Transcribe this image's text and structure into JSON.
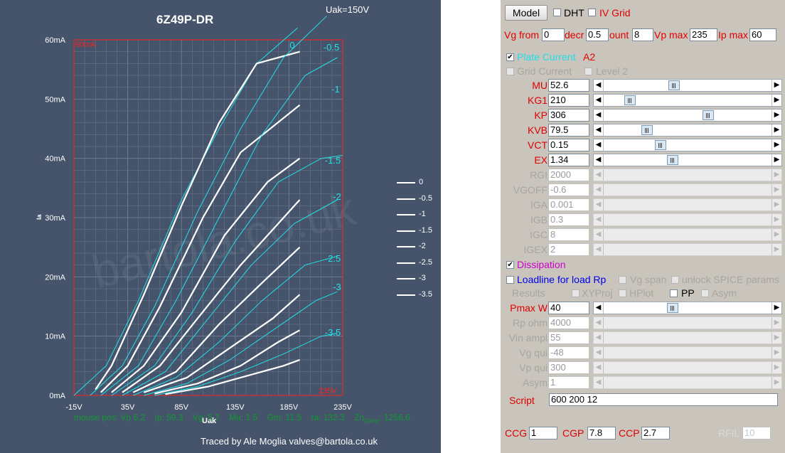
{
  "plot": {
    "title": "6Z49P-DR",
    "condition": "Uak=150V",
    "corner_tl": "60mA",
    "corner_br": "235V",
    "x_axis_label": "Uak",
    "y_axis_label": "Ia",
    "x_ticks": [
      "-15V",
      "35V",
      "85V",
      "135V",
      "185V",
      "235V"
    ],
    "y_ticks": [
      "0mA",
      "10mA",
      "20mA",
      "30mA",
      "40mA",
      "50mA",
      "60mA"
    ],
    "curve_labels": [
      "0",
      "-0.5",
      "-1",
      "-1.5",
      "-2",
      "-2.5",
      "-3",
      "-3.5"
    ],
    "legend": [
      "0",
      "-0.5",
      "-1",
      "-1.5",
      "-2",
      "-2.5",
      "-3",
      "-3.5"
    ],
    "status": {
      "mouse_pos": "mouse pos: Vp 6.2",
      "ip": "Ip: 59.3",
      "vg": "Vg: 5.7",
      "mu": "Mu: 1.5",
      "gm": "Gm: 11.5",
      "ra": "ra: 132.3",
      "zn_pre": "Zn",
      "zn_sub": "10khz",
      "zn_val": ": 1256.6"
    },
    "credit": "Traced by Ale Moglia valves@bartola.co.uk",
    "watermark": "bartola.co.uk",
    "colors": {
      "background": "#45546b",
      "measured": "#ffffff",
      "model": "#22e0e8",
      "frame": "#ff2020"
    }
  },
  "chart_data": {
    "type": "line",
    "title": "6Z49P-DR",
    "subtitle": "Uak=150V",
    "xlabel": "Uak",
    "ylabel": "Ia",
    "xlim": [
      -15,
      235
    ],
    "ylim": [
      0,
      60
    ],
    "grid": true,
    "legend_position": "right",
    "series": [
      {
        "name": "0",
        "model": [
          [
            -15,
            0
          ],
          [
            15,
            5
          ],
          [
            45,
            16
          ],
          [
            85,
            33
          ],
          [
            120,
            45
          ],
          [
            155,
            56
          ],
          [
            193,
            62
          ]
        ],
        "measured": [
          [
            5,
            1
          ],
          [
            20,
            5
          ],
          [
            50,
            17
          ],
          [
            85,
            32
          ],
          [
            120,
            46
          ],
          [
            155,
            56
          ],
          [
            195,
            58
          ]
        ]
      },
      {
        "name": "-0.5",
        "model": [
          [
            0,
            0
          ],
          [
            30,
            5
          ],
          [
            60,
            15
          ],
          [
            100,
            31
          ],
          [
            140,
            45
          ],
          [
            180,
            57
          ],
          [
            220,
            64
          ]
        ],
        "measured": [
          [
            10,
            0.5
          ],
          [
            35,
            5
          ],
          [
            65,
            15
          ],
          [
            105,
            30
          ],
          [
            140,
            41
          ],
          [
            195,
            49
          ]
        ]
      },
      {
        "name": "-1",
        "model": [
          [
            10,
            0
          ],
          [
            45,
            5
          ],
          [
            80,
            16
          ],
          [
            120,
            30
          ],
          [
            160,
            44
          ],
          [
            200,
            54
          ],
          [
            230,
            57
          ]
        ],
        "measured": [
          [
            20,
            0.5
          ],
          [
            50,
            5
          ],
          [
            85,
            14
          ],
          [
            125,
            27
          ],
          [
            165,
            36
          ],
          [
            195,
            40
          ]
        ]
      },
      {
        "name": "-1.5",
        "model": [
          [
            20,
            0
          ],
          [
            60,
            5
          ],
          [
            95,
            14
          ],
          [
            135,
            26
          ],
          [
            175,
            36
          ],
          [
            215,
            40
          ],
          [
            235,
            40.5
          ]
        ],
        "measured": [
          [
            30,
            0.5
          ],
          [
            65,
            5
          ],
          [
            100,
            13
          ],
          [
            140,
            22
          ],
          [
            170,
            28
          ],
          [
            195,
            33
          ]
        ]
      },
      {
        "name": "-2",
        "model": [
          [
            30,
            0
          ],
          [
            70,
            4
          ],
          [
            110,
            13
          ],
          [
            150,
            22
          ],
          [
            190,
            29
          ],
          [
            230,
            33
          ]
        ],
        "measured": [
          [
            40,
            0.5
          ],
          [
            80,
            4
          ],
          [
            120,
            12
          ],
          [
            160,
            19
          ],
          [
            195,
            25
          ]
        ]
      },
      {
        "name": "-2.5",
        "model": [
          [
            40,
            0
          ],
          [
            80,
            3
          ],
          [
            120,
            9
          ],
          [
            160,
            16
          ],
          [
            200,
            22
          ],
          [
            230,
            23.5
          ]
        ],
        "measured": [
          [
            50,
            0.5
          ],
          [
            90,
            3
          ],
          [
            130,
            8
          ],
          [
            170,
            13
          ],
          [
            195,
            17
          ]
        ]
      },
      {
        "name": "-3",
        "model": [
          [
            50,
            0
          ],
          [
            90,
            2
          ],
          [
            130,
            6
          ],
          [
            170,
            11
          ],
          [
            210,
            16
          ],
          [
            230,
            17.5
          ]
        ],
        "measured": [
          [
            60,
            0.3
          ],
          [
            100,
            2
          ],
          [
            140,
            5
          ],
          [
            175,
            9
          ],
          [
            195,
            11
          ]
        ]
      },
      {
        "name": "-3.5",
        "model": [
          [
            60,
            0
          ],
          [
            100,
            1.5
          ],
          [
            140,
            4
          ],
          [
            180,
            7
          ],
          [
            215,
            10
          ],
          [
            230,
            10.5
          ]
        ],
        "measured": [
          [
            70,
            0.2
          ],
          [
            110,
            1.5
          ],
          [
            150,
            3.5
          ],
          [
            180,
            5
          ],
          [
            195,
            6
          ]
        ]
      }
    ]
  },
  "panel": {
    "model_button": "Model",
    "dht": "DHT",
    "iv_grid": "IV Grid",
    "vg_from_label": "Vg from",
    "vg_from": "0",
    "decr_label": "decr",
    "decr": "0.5",
    "count_label": "ount",
    "count": "8",
    "vp_max_label": "Vp max",
    "vp_max": "235",
    "ip_max_label": "Ip max",
    "ip_max": "60",
    "plate_current": "Plate Current",
    "a2": "A2",
    "grid_current": "Grid Current",
    "level2": "Level 2",
    "params": [
      {
        "label": "MU",
        "value": "52.6",
        "pos": 0.42,
        "enabled": true
      },
      {
        "label": "KG1",
        "value": "210",
        "pos": 0.16,
        "enabled": true
      },
      {
        "label": "KP",
        "value": "306",
        "pos": 0.62,
        "enabled": true
      },
      {
        "label": "KVB",
        "value": "79.5",
        "pos": 0.26,
        "enabled": true
      },
      {
        "label": "VCT",
        "value": "0.15",
        "pos": 0.34,
        "enabled": true
      },
      {
        "label": "EX",
        "value": "1.34",
        "pos": 0.41,
        "enabled": true
      },
      {
        "label": "RGI",
        "value": "2000",
        "pos": null,
        "enabled": false
      },
      {
        "label": "VGOFF",
        "value": "-0.6",
        "pos": null,
        "enabled": false
      },
      {
        "label": "IGA",
        "value": "0.001",
        "pos": null,
        "enabled": false
      },
      {
        "label": "IGB",
        "value": "0.3",
        "pos": null,
        "enabled": false
      },
      {
        "label": "IGC",
        "value": "8",
        "pos": null,
        "enabled": false
      },
      {
        "label": "IGEX",
        "value": "2",
        "pos": null,
        "enabled": false
      }
    ],
    "dissipation": "Dissipation",
    "loadline": "Loadline for load Rp",
    "vg_span": "Vg span",
    "unlock_spice": "unlock SPICE params",
    "results": "Results",
    "xyproj": "XYProj",
    "hplot": "HPlot",
    "pp": "PP",
    "asym": "Asym",
    "params2": [
      {
        "label": "Pmax W",
        "value": "40",
        "pos": 0.41,
        "enabled": true
      },
      {
        "label": "Rp ohm",
        "value": "4000",
        "pos": null,
        "enabled": false
      },
      {
        "label": "Vin ampl",
        "value": "55",
        "pos": null,
        "enabled": false
      },
      {
        "label": "Vg qui",
        "value": "-48",
        "pos": null,
        "enabled": false
      },
      {
        "label": "Vp qui",
        "value": "300",
        "pos": null,
        "enabled": false
      },
      {
        "label": "Asym",
        "value": "1",
        "pos": null,
        "enabled": false
      }
    ],
    "script_label": "Script",
    "script": "600 200 12",
    "ccg_label": "CCG",
    "ccg": "1",
    "cgp_label": "CGP",
    "cgp": "7.8",
    "ccp_label": "CCP",
    "ccp": "2.7",
    "rfil_label": "RFIL",
    "rfil": "10"
  }
}
